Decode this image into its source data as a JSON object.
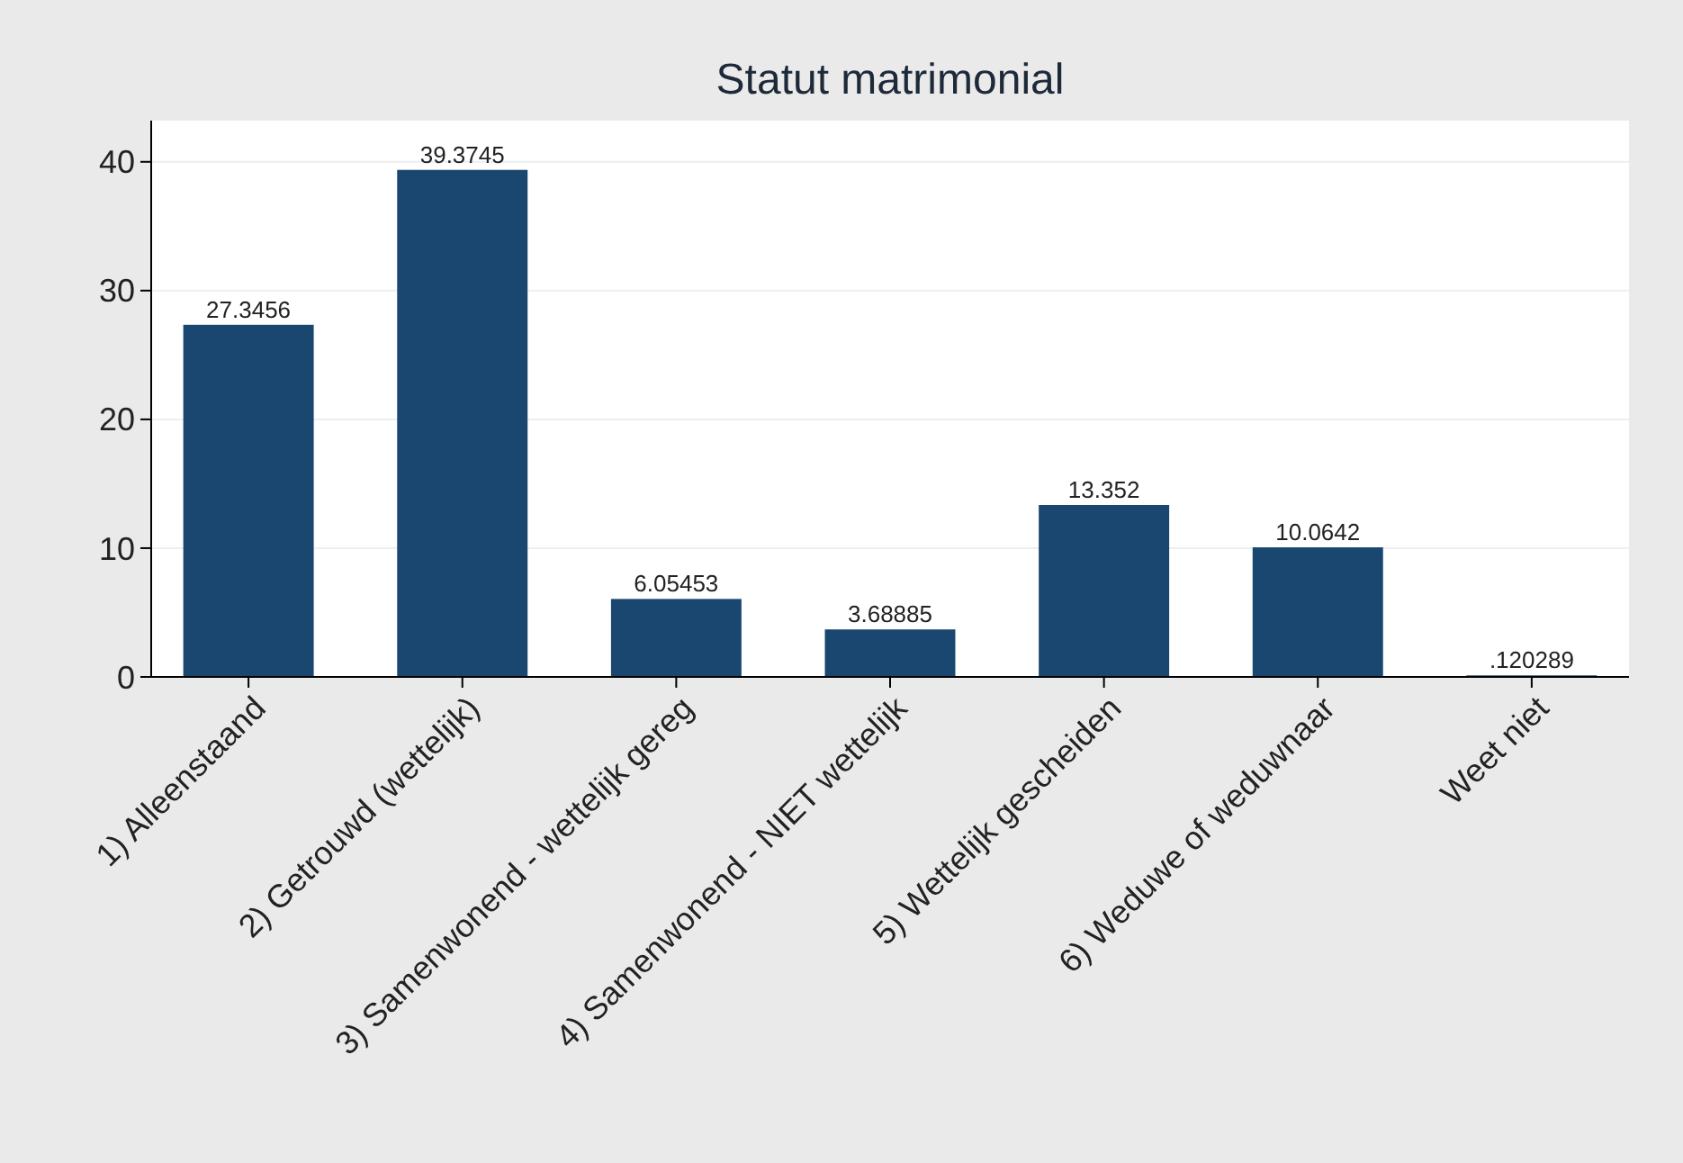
{
  "chart_data": {
    "type": "bar",
    "title": "Statut matrimonial",
    "categories": [
      "1) Alleenstaand",
      "2) Getrouwd (wettelijk)",
      "3) Samenwonend - wettelijk gereg",
      "4) Samenwonend - NIET wettelijk",
      "5) Wettelijk gescheiden",
      "6) Weduwe of weduwnaar",
      "Weet niet"
    ],
    "values": [
      27.3456,
      39.3745,
      6.05453,
      3.68885,
      13.352,
      10.0642,
      0.120289
    ],
    "value_labels": [
      "27.3456",
      "39.3745",
      "6.05453",
      "3.68885",
      "13.352",
      "10.0642",
      ".120289"
    ],
    "color": "#1a476f",
    "ylim": [
      0,
      43.2
    ],
    "yticks": [
      0,
      10,
      20,
      30,
      40
    ],
    "grid": "y"
  }
}
